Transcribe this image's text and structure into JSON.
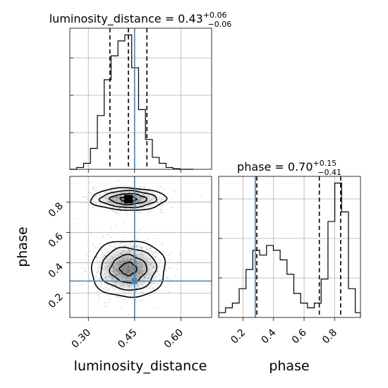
{
  "chart_data": {
    "type": "corner",
    "parameters": [
      "luminosity_distance",
      "phase"
    ],
    "truths": {
      "luminosity_distance": 0.45,
      "phase": 0.28
    },
    "panels": [
      {
        "id": "hist-luminosity_distance",
        "type": "histogram",
        "parameter": "luminosity_distance",
        "title": "luminosity_distance = 0.43",
        "title_upper": "+0.06",
        "title_lower": "−0.06",
        "xlim": [
          0.24,
          0.7
        ],
        "quantiles": [
          0.37,
          0.43,
          0.49
        ],
        "truth": 0.45,
        "bin_edges": [
          0.24,
          0.2623,
          0.2846,
          0.3069,
          0.3292,
          0.3515,
          0.3738,
          0.3961,
          0.4184,
          0.4407,
          0.463,
          0.4853,
          0.5076,
          0.5299,
          0.5522,
          0.5745,
          0.5968,
          0.6191,
          0.6414
        ],
        "counts": [
          0.0,
          0.3,
          1.0,
          3.5,
          9.0,
          15.0,
          19.0,
          21.5,
          22.5,
          17.0,
          10.0,
          5.0,
          2.0,
          1.0,
          0.3,
          0.1,
          0.0,
          0.0
        ]
      },
      {
        "id": "hist-phase",
        "type": "histogram",
        "parameter": "phase",
        "title": "phase = 0.70",
        "title_upper": "+0.15",
        "title_lower": "−0.41",
        "xlim": [
          0.04,
          0.97
        ],
        "xticks": [
          "0.2",
          "0.4",
          "0.6",
          "0.8"
        ],
        "xtick_values": [
          0.2,
          0.4,
          0.6,
          0.8
        ],
        "xlabel": "phase",
        "quantiles": [
          0.29,
          0.7,
          0.84
        ],
        "truth": 0.28,
        "bin_edges": [
          0.04,
          0.0848,
          0.1296,
          0.1744,
          0.2192,
          0.264,
          0.3088,
          0.3536,
          0.3984,
          0.4432,
          0.488,
          0.5328,
          0.5776,
          0.6224,
          0.6672,
          0.712,
          0.7568,
          0.8016,
          0.8464,
          0.8912,
          0.936,
          0.97
        ],
        "counts": [
          1,
          2,
          3,
          6,
          10,
          14,
          13,
          15,
          14,
          12,
          9,
          5,
          3,
          2,
          3,
          8,
          20,
          28,
          22,
          6,
          1
        ]
      },
      {
        "id": "scatter-phase-vs-luminosity_distance",
        "type": "2d-density",
        "x_parameter": "luminosity_distance",
        "y_parameter": "phase",
        "xlim": [
          0.24,
          0.7
        ],
        "ylim": [
          0.04,
          0.97
        ],
        "xticks": [
          "0.30",
          "0.45",
          "0.60"
        ],
        "xtick_values": [
          0.3,
          0.45,
          0.6
        ],
        "yticks": [
          "0.2",
          "0.4",
          "0.6",
          "0.8"
        ],
        "ytick_values": [
          0.2,
          0.4,
          0.6,
          0.8
        ],
        "xlabel": "luminosity_distance",
        "ylabel": "phase",
        "truth": [
          0.45,
          0.28
        ],
        "modes": [
          {
            "x": 0.43,
            "y": 0.82,
            "sx": 0.058,
            "sy": 0.035
          },
          {
            "x": 0.43,
            "y": 0.36,
            "sx": 0.058,
            "sy": 0.09
          }
        ]
      }
    ]
  },
  "colors": {
    "truth": "#4682b4",
    "grid": "#b0b0b0",
    "line": "#000000"
  }
}
